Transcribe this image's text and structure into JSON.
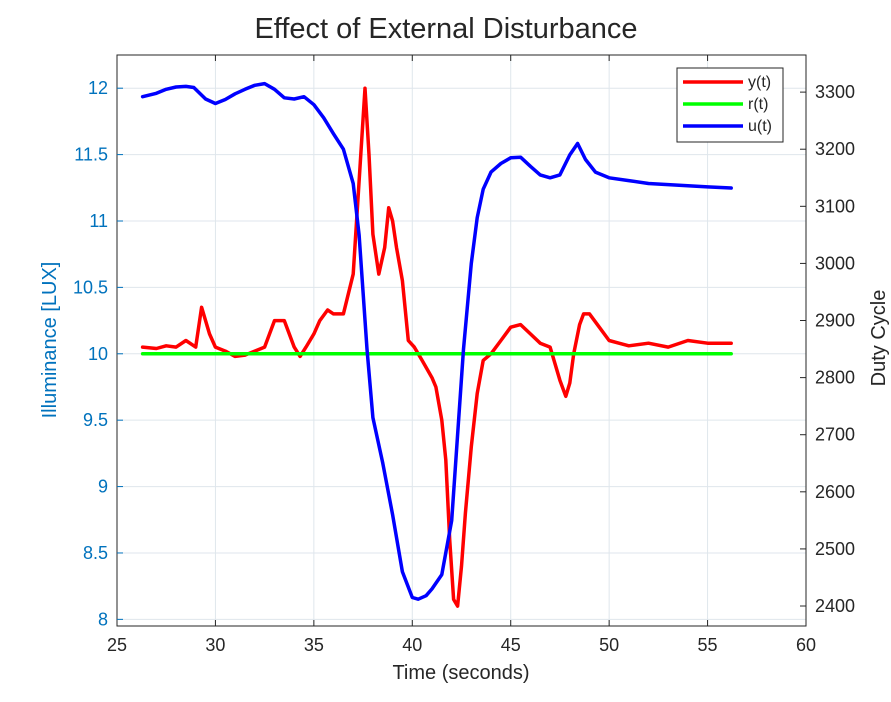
{
  "chart_data": {
    "type": "line",
    "title": "Effect of External Disturbance",
    "xlabel": "Time (seconds)",
    "ylabel_left": "Illuminance [LUX]",
    "ylabel_right": "Duty Cycle",
    "xlim": [
      25,
      60
    ],
    "ylim_left": [
      7.95,
      12.25
    ],
    "ylim_right": [
      2365,
      3365
    ],
    "xticks": [
      "25",
      "30",
      "35",
      "40",
      "45",
      "50",
      "55",
      "60"
    ],
    "yticks_left": [
      "8",
      "8.5",
      "9",
      "9.5",
      "10",
      "10.5",
      "11",
      "11.5",
      "12"
    ],
    "yticks_right": [
      "2400",
      "2500",
      "2600",
      "2700",
      "2800",
      "2900",
      "3000",
      "3100",
      "3200",
      "3300"
    ],
    "grid": true,
    "legend_position": "top-right",
    "series": [
      {
        "name": "y(t)",
        "axis": "left",
        "color": "#ff0000",
        "x": [
          26.3,
          27.0,
          27.5,
          28.0,
          28.5,
          29.0,
          29.3,
          29.7,
          30.0,
          30.5,
          31.0,
          31.5,
          32.0,
          32.5,
          33.0,
          33.5,
          34.0,
          34.3,
          34.6,
          35.0,
          35.3,
          35.7,
          36.0,
          36.5,
          37.0,
          37.3,
          37.6,
          37.8,
          38.0,
          38.3,
          38.6,
          38.8,
          39.0,
          39.2,
          39.5,
          39.8,
          40.1,
          40.5,
          41.0,
          41.2,
          41.5,
          41.7,
          41.9,
          42.1,
          42.3,
          42.5,
          42.7,
          43.0,
          43.3,
          43.6,
          44.0,
          44.5,
          45.0,
          45.5,
          46.0,
          46.5,
          47.0,
          47.5,
          47.8,
          48.0,
          48.2,
          48.5,
          48.7,
          49.0,
          49.5,
          50.0,
          50.5,
          51.0,
          52.0,
          53.0,
          54.0,
          55.0,
          56.2
        ],
        "values": [
          10.05,
          10.04,
          10.06,
          10.05,
          10.1,
          10.05,
          10.35,
          10.15,
          10.05,
          10.02,
          9.98,
          9.99,
          10.02,
          10.05,
          10.25,
          10.25,
          10.05,
          9.98,
          10.05,
          10.15,
          10.25,
          10.33,
          10.3,
          10.3,
          10.6,
          11.3,
          12.0,
          11.5,
          10.9,
          10.6,
          10.8,
          11.1,
          11.0,
          10.8,
          10.55,
          10.1,
          10.05,
          9.95,
          9.82,
          9.75,
          9.5,
          9.2,
          8.6,
          8.15,
          8.1,
          8.4,
          8.8,
          9.3,
          9.7,
          9.95,
          10.0,
          10.1,
          10.2,
          10.22,
          10.15,
          10.08,
          10.05,
          9.8,
          9.68,
          9.78,
          10.0,
          10.22,
          10.3,
          10.3,
          10.2,
          10.1,
          10.08,
          10.06,
          10.08,
          10.05,
          10.1,
          10.08,
          10.08
        ]
      },
      {
        "name": "r(t)",
        "axis": "left",
        "color": "#00ff00",
        "x": [
          26.3,
          56.2
        ],
        "values": [
          10.0,
          10.0
        ]
      },
      {
        "name": "u(t)",
        "axis": "right",
        "color": "#0000ff",
        "x": [
          26.3,
          27.0,
          27.5,
          28.0,
          28.5,
          28.9,
          29.5,
          30.0,
          30.5,
          31.0,
          31.5,
          32.0,
          32.5,
          33.0,
          33.5,
          34.0,
          34.5,
          35.0,
          35.5,
          36.0,
          36.5,
          37.0,
          37.3,
          37.7,
          38.0,
          38.5,
          39.0,
          39.5,
          40.0,
          40.3,
          40.7,
          41.0,
          41.5,
          42.0,
          42.3,
          42.6,
          43.0,
          43.3,
          43.6,
          44.0,
          44.5,
          45.0,
          45.5,
          46.0,
          46.5,
          47.0,
          47.5,
          48.0,
          48.4,
          48.8,
          49.3,
          50.0,
          51.0,
          52.0,
          53.0,
          54.0,
          55.0,
          56.2
        ],
        "values": [
          3292,
          3298,
          3305,
          3309,
          3310,
          3308,
          3288,
          3280,
          3287,
          3297,
          3305,
          3312,
          3315,
          3305,
          3290,
          3288,
          3292,
          3278,
          3255,
          3227,
          3200,
          3140,
          3050,
          2850,
          2730,
          2650,
          2560,
          2460,
          2415,
          2412,
          2418,
          2430,
          2455,
          2550,
          2700,
          2850,
          3000,
          3080,
          3130,
          3160,
          3175,
          3185,
          3186,
          3170,
          3155,
          3150,
          3155,
          3190,
          3210,
          3182,
          3160,
          3150,
          3145,
          3140,
          3138,
          3136,
          3134,
          3132
        ]
      }
    ]
  }
}
